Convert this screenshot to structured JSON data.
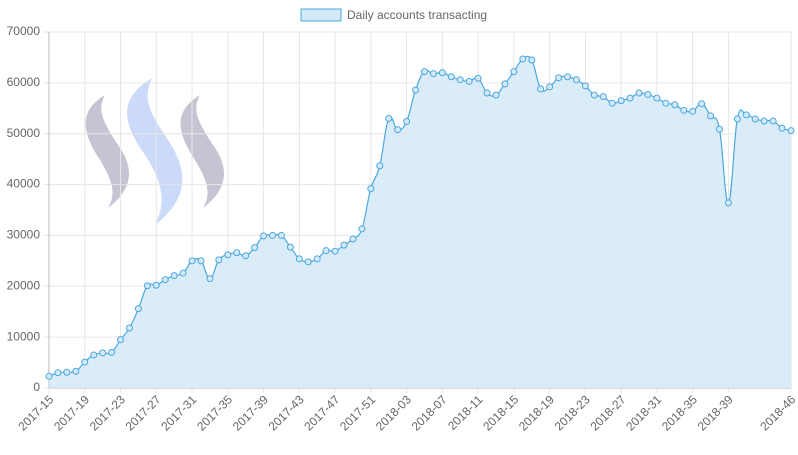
{
  "chart_data": {
    "type": "line",
    "categories": [
      "2017-15",
      null,
      null,
      null,
      "2017-19",
      null,
      null,
      null,
      "2017-23",
      null,
      null,
      null,
      "2017-27",
      null,
      null,
      null,
      "2017-31",
      null,
      null,
      null,
      "2017-35",
      null,
      null,
      null,
      "2017-39",
      null,
      null,
      null,
      "2017-43",
      null,
      null,
      null,
      "2017-47",
      null,
      null,
      null,
      "2017-51",
      null,
      null,
      null,
      "2018-03",
      null,
      null,
      null,
      "2018-07",
      null,
      null,
      null,
      "2018-11",
      null,
      null,
      null,
      "2018-15",
      null,
      null,
      null,
      "2018-19",
      null,
      null,
      null,
      "2018-23",
      null,
      null,
      null,
      "2018-27",
      null,
      null,
      null,
      "2018-31",
      null,
      null,
      null,
      "2018-35",
      null,
      null,
      null,
      "2018-39",
      null,
      null,
      null,
      null,
      null,
      null,
      "2018-46"
    ],
    "series": [
      {
        "name": "Daily accounts transacting",
        "color": "#4aa8e0",
        "fill": "#d5e9f8",
        "values": [
          2300,
          3000,
          3100,
          3300,
          5100,
          6500,
          6900,
          7000,
          9500,
          11800,
          15600,
          20100,
          20200,
          21300,
          22100,
          22600,
          25000,
          25000,
          21500,
          25200,
          26200,
          26600,
          26000,
          27600,
          29900,
          30000,
          30000,
          27700,
          25400,
          24800,
          25400,
          27000,
          26900,
          28100,
          29300,
          31300,
          39200,
          43700,
          53000,
          50800,
          52400,
          58600,
          62200,
          61800,
          62000,
          61200,
          60600,
          60300,
          60900,
          58000,
          57600,
          59800,
          62200,
          64700,
          64500,
          58800,
          59200,
          61000,
          61200,
          60600,
          59400,
          57600,
          57300,
          56000,
          56500,
          57000,
          58000,
          57700,
          57000,
          56000,
          55700,
          54600,
          54400,
          55900,
          53500,
          50900,
          36400,
          52900,
          53700,
          52900,
          52500,
          52500,
          51100,
          50600
        ]
      }
    ],
    "ylim": [
      0,
      70000
    ],
    "yticks": [
      0,
      10000,
      20000,
      30000,
      40000,
      50000,
      60000,
      70000
    ],
    "grid": true,
    "legend": "top"
  }
}
